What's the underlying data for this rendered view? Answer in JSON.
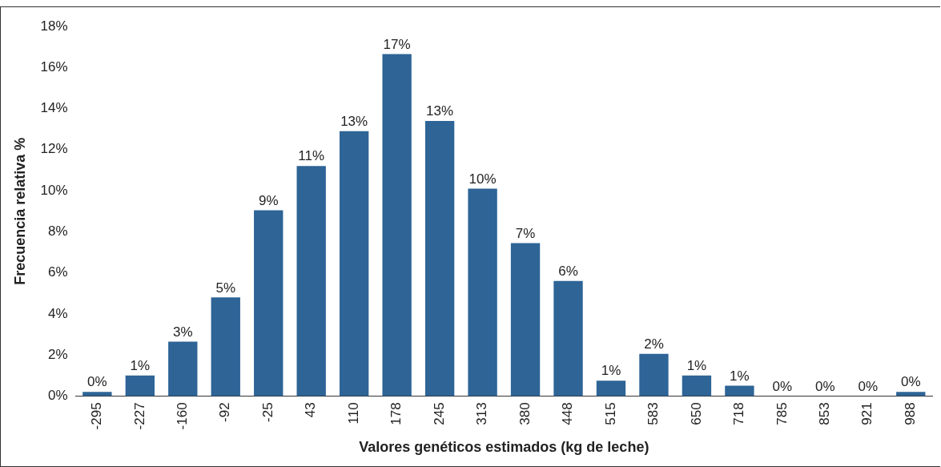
{
  "chart_data": {
    "type": "bar",
    "xlabel": "Valores genéticos estimados (kg de leche)",
    "ylabel": "Frecuencia relativa %",
    "categories": [
      "-295",
      "-227",
      "-160",
      "-92",
      "-25",
      "43",
      "110",
      "178",
      "245",
      "313",
      "380",
      "448",
      "515",
      "583",
      "650",
      "718",
      "785",
      "853",
      "921",
      "988"
    ],
    "values": [
      0.2,
      1.0,
      2.65,
      4.8,
      9.05,
      11.2,
      12.9,
      16.65,
      13.4,
      10.1,
      7.45,
      5.6,
      0.75,
      2.05,
      1.0,
      0.5,
      0,
      0,
      0,
      0.2
    ],
    "value_labels": [
      "0%",
      "1%",
      "3%",
      "5%",
      "9%",
      "11%",
      "13%",
      "17%",
      "13%",
      "10%",
      "7%",
      "6%",
      "1%",
      "2%",
      "1%",
      "1%",
      "0%",
      "0%",
      "0%",
      "0%"
    ],
    "color": "#2e6496",
    "ylim": [
      0,
      18
    ],
    "yticks": [
      {
        "value": 0,
        "label": "0%"
      },
      {
        "value": 2,
        "label": "2%"
      },
      {
        "value": 4,
        "label": "4%"
      },
      {
        "value": 6,
        "label": "6%"
      },
      {
        "value": 8,
        "label": "8%"
      },
      {
        "value": 10,
        "label": "10%"
      },
      {
        "value": 12,
        "label": "12%"
      },
      {
        "value": 14,
        "label": "14%"
      },
      {
        "value": 16,
        "label": "16%"
      },
      {
        "value": 18,
        "label": "18%"
      }
    ],
    "grid": false,
    "legend": false
  }
}
